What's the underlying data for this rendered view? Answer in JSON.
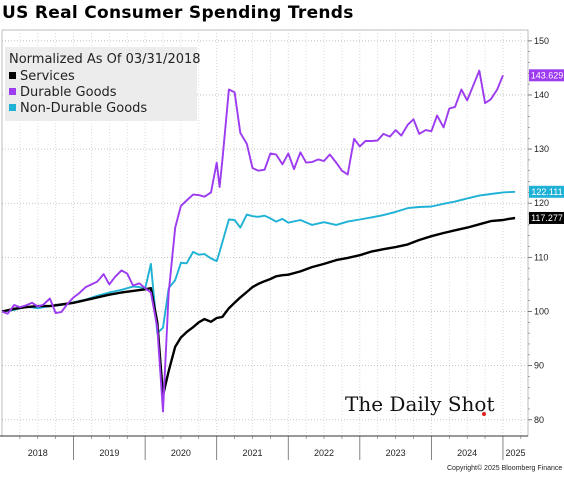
{
  "chart_data": {
    "type": "line",
    "title": "US Real Consumer Spending Trends",
    "subtitle": "Normalized As Of 03/31/2018",
    "ylim": [
      77,
      152
    ],
    "y_ticks": [
      80,
      90,
      100,
      110,
      120,
      130,
      140,
      150
    ],
    "x_range": [
      2018.0,
      2025.35
    ],
    "x_ticks": [
      "2018",
      "2019",
      "2020",
      "2021",
      "2022",
      "2023",
      "2024",
      "2025"
    ],
    "legend_position": "top-left",
    "credit": "Copyright© 2025 Bloomberg Finance L.P.",
    "brand": "The Daily Shot",
    "series": [
      {
        "name": "Services",
        "color": "#000000",
        "end_label": "117.277",
        "points": [
          [
            2018.0,
            100.0
          ],
          [
            2018.17,
            100.5
          ],
          [
            2018.33,
            100.8
          ],
          [
            2018.5,
            101.0
          ],
          [
            2018.67,
            101.0
          ],
          [
            2018.83,
            101.3
          ],
          [
            2019.0,
            101.6
          ],
          [
            2019.17,
            102.1
          ],
          [
            2019.33,
            102.6
          ],
          [
            2019.5,
            103.1
          ],
          [
            2019.67,
            103.5
          ],
          [
            2019.83,
            103.8
          ],
          [
            2020.0,
            104.1
          ],
          [
            2020.08,
            104.3
          ],
          [
            2020.17,
            98.0
          ],
          [
            2020.25,
            84.5
          ],
          [
            2020.33,
            89.0
          ],
          [
            2020.42,
            93.5
          ],
          [
            2020.5,
            95.2
          ],
          [
            2020.58,
            96.2
          ],
          [
            2020.67,
            97.1
          ],
          [
            2020.75,
            98.0
          ],
          [
            2020.83,
            98.6
          ],
          [
            2020.92,
            98.1
          ],
          [
            2021.0,
            98.8
          ],
          [
            2021.08,
            99.0
          ],
          [
            2021.17,
            100.6
          ],
          [
            2021.25,
            101.6
          ],
          [
            2021.33,
            102.6
          ],
          [
            2021.42,
            103.6
          ],
          [
            2021.5,
            104.5
          ],
          [
            2021.58,
            105.1
          ],
          [
            2021.67,
            105.6
          ],
          [
            2021.75,
            106.0
          ],
          [
            2021.83,
            106.5
          ],
          [
            2021.92,
            106.7
          ],
          [
            2022.0,
            106.8
          ],
          [
            2022.17,
            107.4
          ],
          [
            2022.33,
            108.2
          ],
          [
            2022.5,
            108.8
          ],
          [
            2022.67,
            109.5
          ],
          [
            2022.83,
            109.9
          ],
          [
            2023.0,
            110.4
          ],
          [
            2023.17,
            111.1
          ],
          [
            2023.33,
            111.5
          ],
          [
            2023.5,
            111.9
          ],
          [
            2023.67,
            112.4
          ],
          [
            2023.83,
            113.2
          ],
          [
            2024.0,
            113.9
          ],
          [
            2024.17,
            114.5
          ],
          [
            2024.33,
            115.0
          ],
          [
            2024.5,
            115.5
          ],
          [
            2024.67,
            116.1
          ],
          [
            2024.83,
            116.7
          ],
          [
            2025.0,
            116.9
          ],
          [
            2025.08,
            117.1
          ],
          [
            2025.17,
            117.277
          ]
        ]
      },
      {
        "name": "Durable Goods",
        "color": "#9d3bf0",
        "end_label": "143.629",
        "points": [
          [
            2018.0,
            100.0
          ],
          [
            2018.08,
            99.6
          ],
          [
            2018.17,
            101.2
          ],
          [
            2018.25,
            100.8
          ],
          [
            2018.33,
            101.1
          ],
          [
            2018.42,
            101.6
          ],
          [
            2018.5,
            100.9
          ],
          [
            2018.58,
            101.3
          ],
          [
            2018.67,
            102.4
          ],
          [
            2018.75,
            99.7
          ],
          [
            2018.83,
            99.9
          ],
          [
            2018.92,
            101.5
          ],
          [
            2019.0,
            102.6
          ],
          [
            2019.08,
            103.4
          ],
          [
            2019.17,
            104.5
          ],
          [
            2019.25,
            105.0
          ],
          [
            2019.33,
            105.5
          ],
          [
            2019.42,
            106.9
          ],
          [
            2019.5,
            105.0
          ],
          [
            2019.58,
            106.4
          ],
          [
            2019.67,
            107.6
          ],
          [
            2019.75,
            107.0
          ],
          [
            2019.83,
            104.8
          ],
          [
            2019.92,
            105.2
          ],
          [
            2020.0,
            104.3
          ],
          [
            2020.08,
            103.5
          ],
          [
            2020.17,
            97.0
          ],
          [
            2020.25,
            81.5
          ],
          [
            2020.33,
            103.5
          ],
          [
            2020.42,
            115.5
          ],
          [
            2020.5,
            119.5
          ],
          [
            2020.58,
            120.5
          ],
          [
            2020.67,
            121.6
          ],
          [
            2020.75,
            121.5
          ],
          [
            2020.83,
            121.2
          ],
          [
            2020.92,
            122.0
          ],
          [
            2021.0,
            127.5
          ],
          [
            2021.04,
            123.0
          ],
          [
            2021.08,
            128.0
          ],
          [
            2021.17,
            141.0
          ],
          [
            2021.25,
            140.5
          ],
          [
            2021.33,
            133.0
          ],
          [
            2021.42,
            131.0
          ],
          [
            2021.5,
            126.5
          ],
          [
            2021.58,
            126.0
          ],
          [
            2021.67,
            126.2
          ],
          [
            2021.75,
            129.2
          ],
          [
            2021.83,
            129.0
          ],
          [
            2021.92,
            127.2
          ],
          [
            2022.0,
            129.2
          ],
          [
            2022.08,
            126.3
          ],
          [
            2022.17,
            129.4
          ],
          [
            2022.25,
            127.5
          ],
          [
            2022.33,
            127.6
          ],
          [
            2022.42,
            128.1
          ],
          [
            2022.5,
            127.8
          ],
          [
            2022.58,
            129.0
          ],
          [
            2022.67,
            127.5
          ],
          [
            2022.75,
            126.0
          ],
          [
            2022.83,
            125.3
          ],
          [
            2022.92,
            131.9
          ],
          [
            2023.0,
            130.5
          ],
          [
            2023.08,
            131.5
          ],
          [
            2023.17,
            131.5
          ],
          [
            2023.25,
            131.6
          ],
          [
            2023.33,
            132.8
          ],
          [
            2023.42,
            132.3
          ],
          [
            2023.5,
            133.5
          ],
          [
            2023.58,
            132.5
          ],
          [
            2023.67,
            134.5
          ],
          [
            2023.75,
            135.5
          ],
          [
            2023.83,
            132.8
          ],
          [
            2023.92,
            133.5
          ],
          [
            2024.0,
            133.3
          ],
          [
            2024.08,
            136.2
          ],
          [
            2024.17,
            134.0
          ],
          [
            2024.25,
            137.5
          ],
          [
            2024.33,
            137.8
          ],
          [
            2024.42,
            141.0
          ],
          [
            2024.5,
            139.0
          ],
          [
            2024.58,
            141.6
          ],
          [
            2024.67,
            144.5
          ],
          [
            2024.75,
            138.5
          ],
          [
            2024.83,
            139.2
          ],
          [
            2024.92,
            141.0
          ],
          [
            2025.0,
            143.629
          ]
        ]
      },
      {
        "name": "Non-Durable Goods",
        "color": "#1fb1d6",
        "end_label": "122.111",
        "points": [
          [
            2018.0,
            100.0
          ],
          [
            2018.17,
            100.3
          ],
          [
            2018.33,
            100.9
          ],
          [
            2018.5,
            100.6
          ],
          [
            2018.67,
            101.0
          ],
          [
            2018.83,
            101.2
          ],
          [
            2019.0,
            101.7
          ],
          [
            2019.17,
            102.2
          ],
          [
            2019.33,
            102.9
          ],
          [
            2019.5,
            103.5
          ],
          [
            2019.67,
            104.0
          ],
          [
            2019.83,
            104.6
          ],
          [
            2019.92,
            104.5
          ],
          [
            2020.0,
            104.2
          ],
          [
            2020.08,
            108.8
          ],
          [
            2020.17,
            96.0
          ],
          [
            2020.25,
            97.0
          ],
          [
            2020.33,
            104.3
          ],
          [
            2020.42,
            105.8
          ],
          [
            2020.5,
            109.0
          ],
          [
            2020.58,
            108.9
          ],
          [
            2020.67,
            111.0
          ],
          [
            2020.75,
            110.5
          ],
          [
            2020.83,
            110.6
          ],
          [
            2020.92,
            109.8
          ],
          [
            2021.0,
            109.3
          ],
          [
            2021.04,
            111.0
          ],
          [
            2021.17,
            117.0
          ],
          [
            2021.25,
            116.9
          ],
          [
            2021.33,
            115.5
          ],
          [
            2021.42,
            117.9
          ],
          [
            2021.5,
            117.6
          ],
          [
            2021.58,
            117.5
          ],
          [
            2021.67,
            117.7
          ],
          [
            2021.75,
            117.2
          ],
          [
            2021.83,
            116.6
          ],
          [
            2021.92,
            117.1
          ],
          [
            2022.0,
            116.4
          ],
          [
            2022.17,
            116.9
          ],
          [
            2022.33,
            116.0
          ],
          [
            2022.5,
            116.5
          ],
          [
            2022.67,
            116.0
          ],
          [
            2022.83,
            116.6
          ],
          [
            2023.0,
            117.0
          ],
          [
            2023.17,
            117.4
          ],
          [
            2023.33,
            117.8
          ],
          [
            2023.5,
            118.4
          ],
          [
            2023.67,
            119.1
          ],
          [
            2023.83,
            119.3
          ],
          [
            2024.0,
            119.4
          ],
          [
            2024.17,
            119.9
          ],
          [
            2024.33,
            120.3
          ],
          [
            2024.5,
            120.9
          ],
          [
            2024.67,
            121.4
          ],
          [
            2024.83,
            121.7
          ],
          [
            2025.0,
            122.0
          ],
          [
            2025.17,
            122.111
          ]
        ]
      }
    ]
  }
}
